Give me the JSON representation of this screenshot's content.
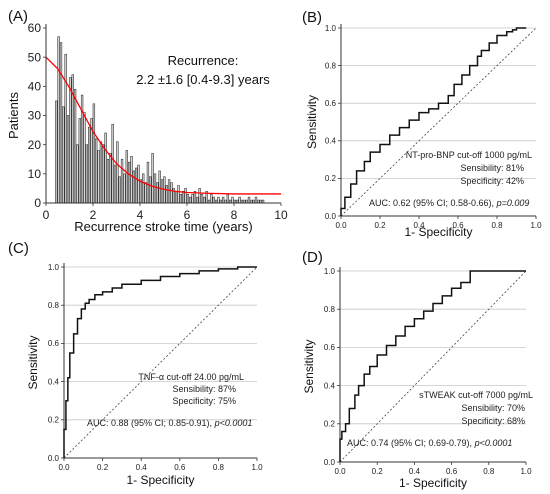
{
  "chart_data": [
    {
      "panel": "(A)",
      "type": "bar",
      "xlabel": "Recurrence stroke time (years)",
      "ylabel": "Patients",
      "xlim": [
        0,
        10
      ],
      "ylim": [
        0,
        60
      ],
      "xticks": [
        "0",
        "2",
        "4",
        "6",
        "8",
        "10"
      ],
      "yticks": [
        "0",
        "10",
        "20",
        "30",
        "40",
        "50",
        "60"
      ],
      "annotation": [
        "Recurrence:",
        "2.2 ±1.6 [0.4-9.3] years"
      ],
      "bin_width": 0.1,
      "bin_start": 0.4,
      "values": [
        35,
        57,
        55,
        33,
        51,
        30,
        43,
        44,
        39,
        20,
        29,
        37,
        31,
        20,
        26,
        29,
        34,
        22,
        18,
        21,
        20,
        24,
        15,
        17,
        27,
        13,
        21,
        9,
        15,
        10,
        18,
        14,
        16,
        11,
        12,
        13,
        8,
        10,
        7,
        14,
        9,
        17,
        10,
        7,
        11,
        8,
        9,
        6,
        8,
        7,
        5,
        4,
        6,
        3,
        4,
        5,
        3,
        2,
        3,
        4,
        2,
        5,
        3,
        2,
        4,
        1,
        3,
        2,
        1,
        2,
        1,
        2,
        1,
        3,
        1,
        2,
        1,
        1,
        2,
        1,
        1,
        1,
        2,
        1,
        1,
        2,
        1,
        1,
        1
      ],
      "fit_line": {
        "color": "#ff0000",
        "x": [
          0,
          0.5,
          1,
          1.5,
          2,
          2.5,
          3,
          3.5,
          4,
          4.5,
          5,
          5.5,
          6,
          7,
          8,
          10
        ],
        "y": [
          50,
          46,
          39.5,
          32,
          24.5,
          18.5,
          13.5,
          10,
          7.5,
          5.8,
          4.7,
          4,
          3.6,
          3.3,
          3.1,
          3.1
        ]
      },
      "grid": false
    },
    {
      "panel": "(B)",
      "type": "line",
      "xlabel": "1- Specificity",
      "ylabel": "Sensitivity",
      "xlim": [
        0,
        1
      ],
      "ylim": [
        0,
        1
      ],
      "xticks": [
        "0.0",
        "0.2",
        "0.4",
        "0.6",
        "0.8",
        "1.0"
      ],
      "yticks": [
        "0.0",
        "0.2",
        "0.4",
        "0.6",
        "0.8",
        "1.0"
      ],
      "legend": [
        "NT-pro-BNP cut-off 1000  pg/mL",
        "Sensibility: 81%",
        "Specificity: 42%"
      ],
      "auc": [
        "AUC: 0.62 (95% CI; 0.58-0.66), ",
        "p=0.009"
      ],
      "x": [
        0,
        0.02,
        0.05,
        0.08,
        0.12,
        0.15,
        0.2,
        0.25,
        0.3,
        0.35,
        0.4,
        0.45,
        0.5,
        0.55,
        0.58,
        0.62,
        0.66,
        0.7,
        0.72,
        0.76,
        0.8,
        0.85,
        0.88,
        0.9,
        0.95
      ],
      "y": [
        0,
        0.04,
        0.1,
        0.17,
        0.24,
        0.29,
        0.34,
        0.38,
        0.43,
        0.47,
        0.51,
        0.55,
        0.57,
        0.6,
        0.64,
        0.7,
        0.75,
        0.8,
        0.85,
        0.88,
        0.92,
        0.96,
        0.98,
        0.99,
        1.0
      ],
      "reference_diagonal": true,
      "grid": "horizontal"
    },
    {
      "panel": "(C)",
      "type": "line",
      "xlabel": "1- Specificity",
      "ylabel": "Sensitivity",
      "xlim": [
        0,
        1
      ],
      "ylim": [
        0,
        1
      ],
      "xticks": [
        "0.0",
        "0.2",
        "0.4",
        "0.6",
        "0.8",
        "1.0"
      ],
      "yticks": [
        "0.0",
        "0.2",
        "0.4",
        "0.6",
        "0.8",
        "1.0"
      ],
      "legend": [
        "TNF-α cut-off 24.00 pg/mL",
        "Sensibility: 87%",
        "Specificity: 75%"
      ],
      "auc": [
        "AUC: 0.88 (95% CI; 0.85-0.91), ",
        "p<0.0001"
      ],
      "x": [
        0,
        0.01,
        0.02,
        0.03,
        0.05,
        0.07,
        0.09,
        0.11,
        0.13,
        0.16,
        0.2,
        0.25,
        0.3,
        0.4,
        0.5,
        0.6,
        0.7,
        0.8,
        0.9,
        1.0
      ],
      "y": [
        0,
        0.15,
        0.3,
        0.42,
        0.55,
        0.65,
        0.73,
        0.78,
        0.81,
        0.83,
        0.855,
        0.87,
        0.89,
        0.91,
        0.93,
        0.95,
        0.965,
        0.98,
        0.99,
        1.0
      ],
      "reference_diagonal": true,
      "grid": "horizontal"
    },
    {
      "panel": "(D)",
      "type": "line",
      "xlabel": "1- Specificity",
      "ylabel": "Sensitivity",
      "xlim": [
        0,
        1
      ],
      "ylim": [
        0,
        1
      ],
      "xticks": [
        "0.0",
        "0.2",
        "0.4",
        "0.6",
        "0.8",
        "1.0"
      ],
      "yticks": [
        "0.0",
        "0.2",
        "0.4",
        "0.6",
        "0.8",
        "1.0"
      ],
      "legend": [
        "sTWEAK cut-off  7000 pg/mL",
        "Sensibility: 70%",
        "Specificity: 68%"
      ],
      "auc": [
        "AUC: 0.74 (95% CI; 0.69-0.79), ",
        "p<0.0001"
      ],
      "x": [
        0,
        0.01,
        0.03,
        0.05,
        0.08,
        0.1,
        0.13,
        0.16,
        0.2,
        0.25,
        0.3,
        0.35,
        0.4,
        0.45,
        0.5,
        0.55,
        0.6,
        0.65,
        0.7,
        0.72,
        0.8,
        0.9,
        1.0
      ],
      "y": [
        0,
        0.12,
        0.16,
        0.2,
        0.28,
        0.35,
        0.4,
        0.46,
        0.5,
        0.56,
        0.61,
        0.66,
        0.71,
        0.75,
        0.79,
        0.83,
        0.87,
        0.91,
        0.94,
        1.0,
        1.0,
        1.0,
        1.0
      ],
      "reference_diagonal": true,
      "grid": "horizontal"
    }
  ]
}
